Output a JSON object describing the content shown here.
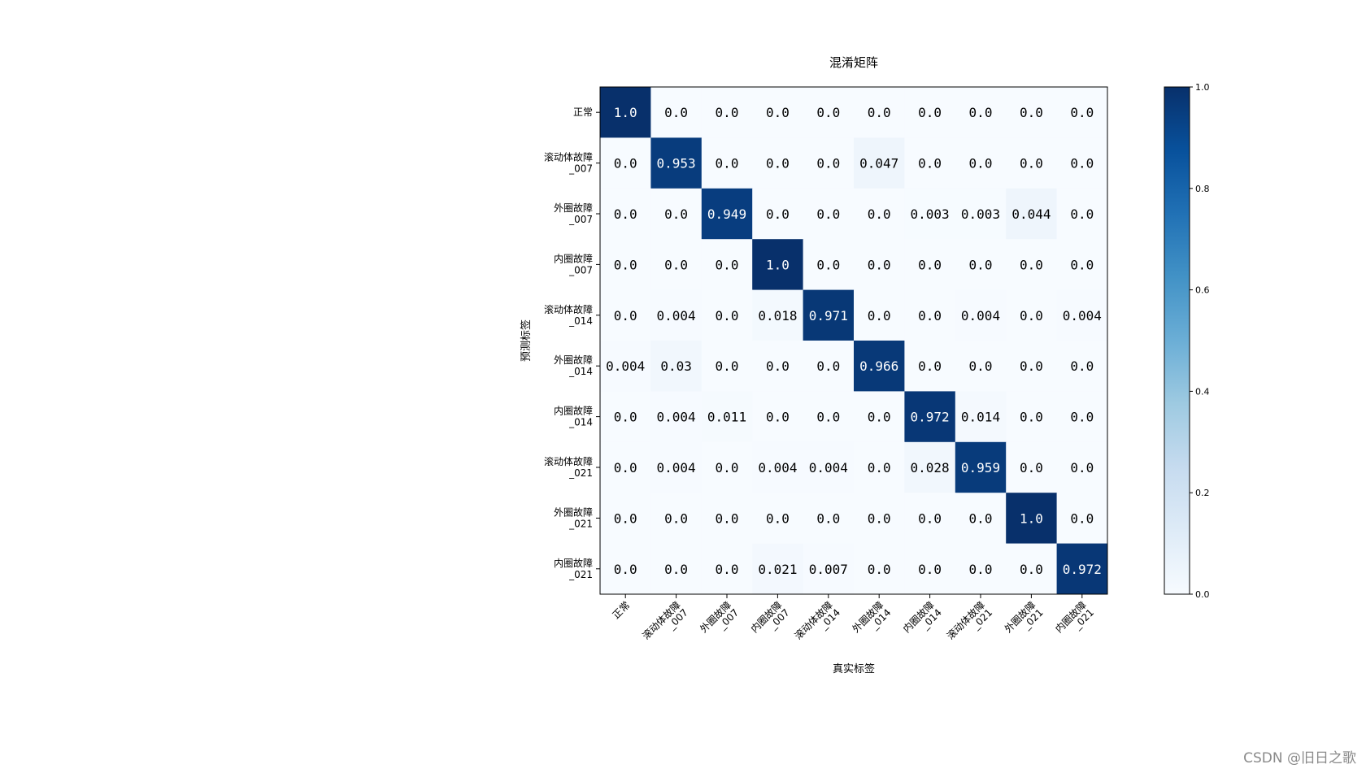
{
  "chart_data": {
    "type": "heatmap",
    "title": "混淆矩阵",
    "xlabel": "真实标签",
    "ylabel": "预测标签",
    "x_categories": [
      "正常",
      "滚动体故障\n_007",
      "外圈故障\n_007",
      "内圈故障\n_007",
      "滚动体故障\n_014",
      "外圈故障\n_014",
      "内圈故障\n_014",
      "滚动体故障\n_021",
      "外圈故障\n_021",
      "内圈故障\n_021"
    ],
    "y_categories": [
      "正常",
      "滚动体故障\n_007",
      "外圈故障\n_007",
      "内圈故障\n_007",
      "滚动体故障\n_014",
      "外圈故障\n_014",
      "内圈故障\n_014",
      "滚动体故障\n_021",
      "外圈故障\n_021",
      "内圈故障\n_021"
    ],
    "values": [
      [
        "1.0",
        "0.0",
        "0.0",
        "0.0",
        "0.0",
        "0.0",
        "0.0",
        "0.0",
        "0.0",
        "0.0"
      ],
      [
        "0.0",
        "0.953",
        "0.0",
        "0.0",
        "0.0",
        "0.047",
        "0.0",
        "0.0",
        "0.0",
        "0.0"
      ],
      [
        "0.0",
        "0.0",
        "0.949",
        "0.0",
        "0.0",
        "0.0",
        "0.003",
        "0.003",
        "0.044",
        "0.0"
      ],
      [
        "0.0",
        "0.0",
        "0.0",
        "1.0",
        "0.0",
        "0.0",
        "0.0",
        "0.0",
        "0.0",
        "0.0"
      ],
      [
        "0.0",
        "0.004",
        "0.0",
        "0.018",
        "0.971",
        "0.0",
        "0.0",
        "0.004",
        "0.0",
        "0.004"
      ],
      [
        "0.004",
        "0.03",
        "0.0",
        "0.0",
        "0.0",
        "0.966",
        "0.0",
        "0.0",
        "0.0",
        "0.0"
      ],
      [
        "0.0",
        "0.004",
        "0.011",
        "0.0",
        "0.0",
        "0.0",
        "0.972",
        "0.014",
        "0.0",
        "0.0"
      ],
      [
        "0.0",
        "0.004",
        "0.0",
        "0.004",
        "0.004",
        "0.0",
        "0.028",
        "0.959",
        "0.0",
        "0.0"
      ],
      [
        "0.0",
        "0.0",
        "0.0",
        "0.0",
        "0.0",
        "0.0",
        "0.0",
        "0.0",
        "1.0",
        "0.0"
      ],
      [
        "0.0",
        "0.0",
        "0.0",
        "0.021",
        "0.007",
        "0.0",
        "0.0",
        "0.0",
        "0.0",
        "0.972"
      ]
    ],
    "colormap": "Blues",
    "colorbar": {
      "range": [
        0,
        1
      ],
      "ticks": [
        "0.0",
        "0.2",
        "0.4",
        "0.6",
        "0.8",
        "1.0"
      ]
    },
    "colors": {
      "low": "#f7fbff",
      "high": "#08306b"
    }
  },
  "watermark": "CSDN @旧日之歌"
}
